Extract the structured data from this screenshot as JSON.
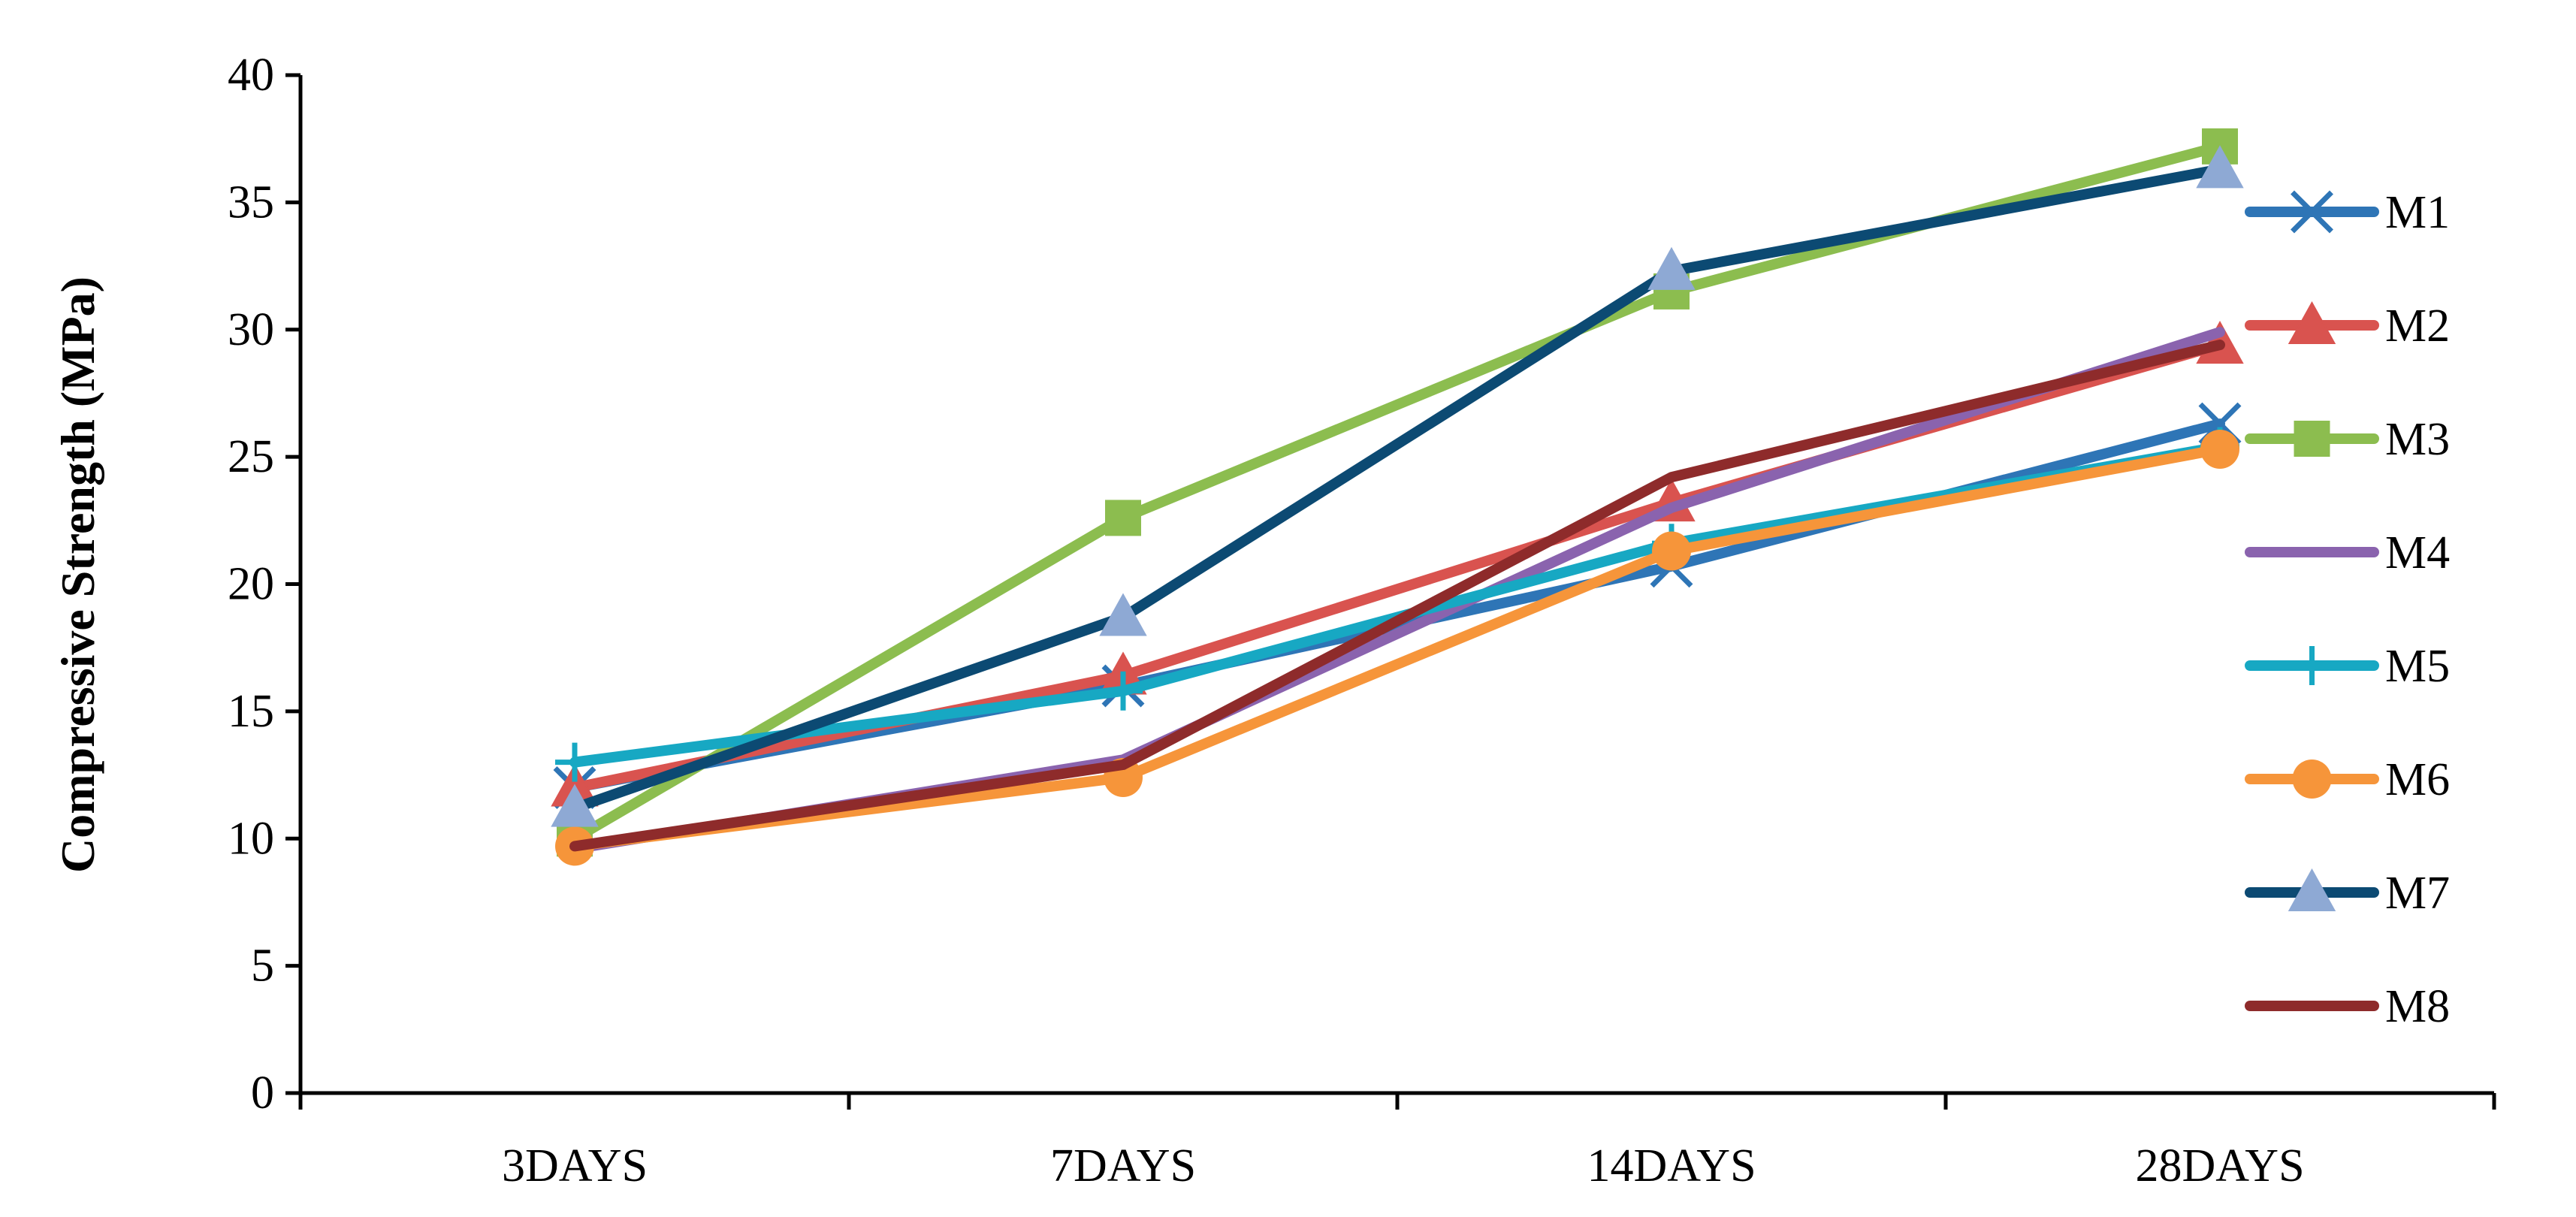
{
  "chart_data": {
    "type": "line",
    "title": "",
    "xlabel": "",
    "ylabel": "Compressive Strength (MPa)",
    "categories": [
      "3DAYS",
      "7DAYS",
      "14DAYS",
      "28DAYS"
    ],
    "ylim": [
      0,
      40
    ],
    "yticks": [
      0,
      5,
      10,
      15,
      20,
      25,
      30,
      35,
      40
    ],
    "grid": false,
    "legend_position": "right",
    "series": [
      {
        "name": "M1",
        "color": "#2E75B6",
        "marker": "x",
        "values": [
          12.0,
          16.0,
          20.7,
          26.3
        ]
      },
      {
        "name": "M2",
        "color": "#D9534F",
        "marker": "triangle",
        "values": [
          12.0,
          16.4,
          23.2,
          29.4
        ]
      },
      {
        "name": "M3",
        "color": "#8CBD4F",
        "marker": "square",
        "values": [
          10.0,
          22.6,
          31.5,
          37.2
        ]
      },
      {
        "name": "M4",
        "color": "#8A63AE",
        "marker": "none",
        "values": [
          9.6,
          13.1,
          23.0,
          29.9
        ]
      },
      {
        "name": "M5",
        "color": "#17A8C3",
        "marker": "plus",
        "values": [
          13.0,
          15.8,
          21.6,
          25.4
        ]
      },
      {
        "name": "M6",
        "color": "#F6953A",
        "marker": "circle",
        "values": [
          9.7,
          12.4,
          21.3,
          25.3
        ]
      },
      {
        "name": "M7",
        "color": "#0C4A73",
        "marker": "triangle",
        "marker_fill": "#8EA9D4",
        "values": [
          11.2,
          18.7,
          32.3,
          36.3
        ]
      },
      {
        "name": "M8",
        "color": "#8E2B2B",
        "marker": "none",
        "values": [
          9.7,
          12.9,
          24.2,
          29.4
        ]
      }
    ]
  }
}
